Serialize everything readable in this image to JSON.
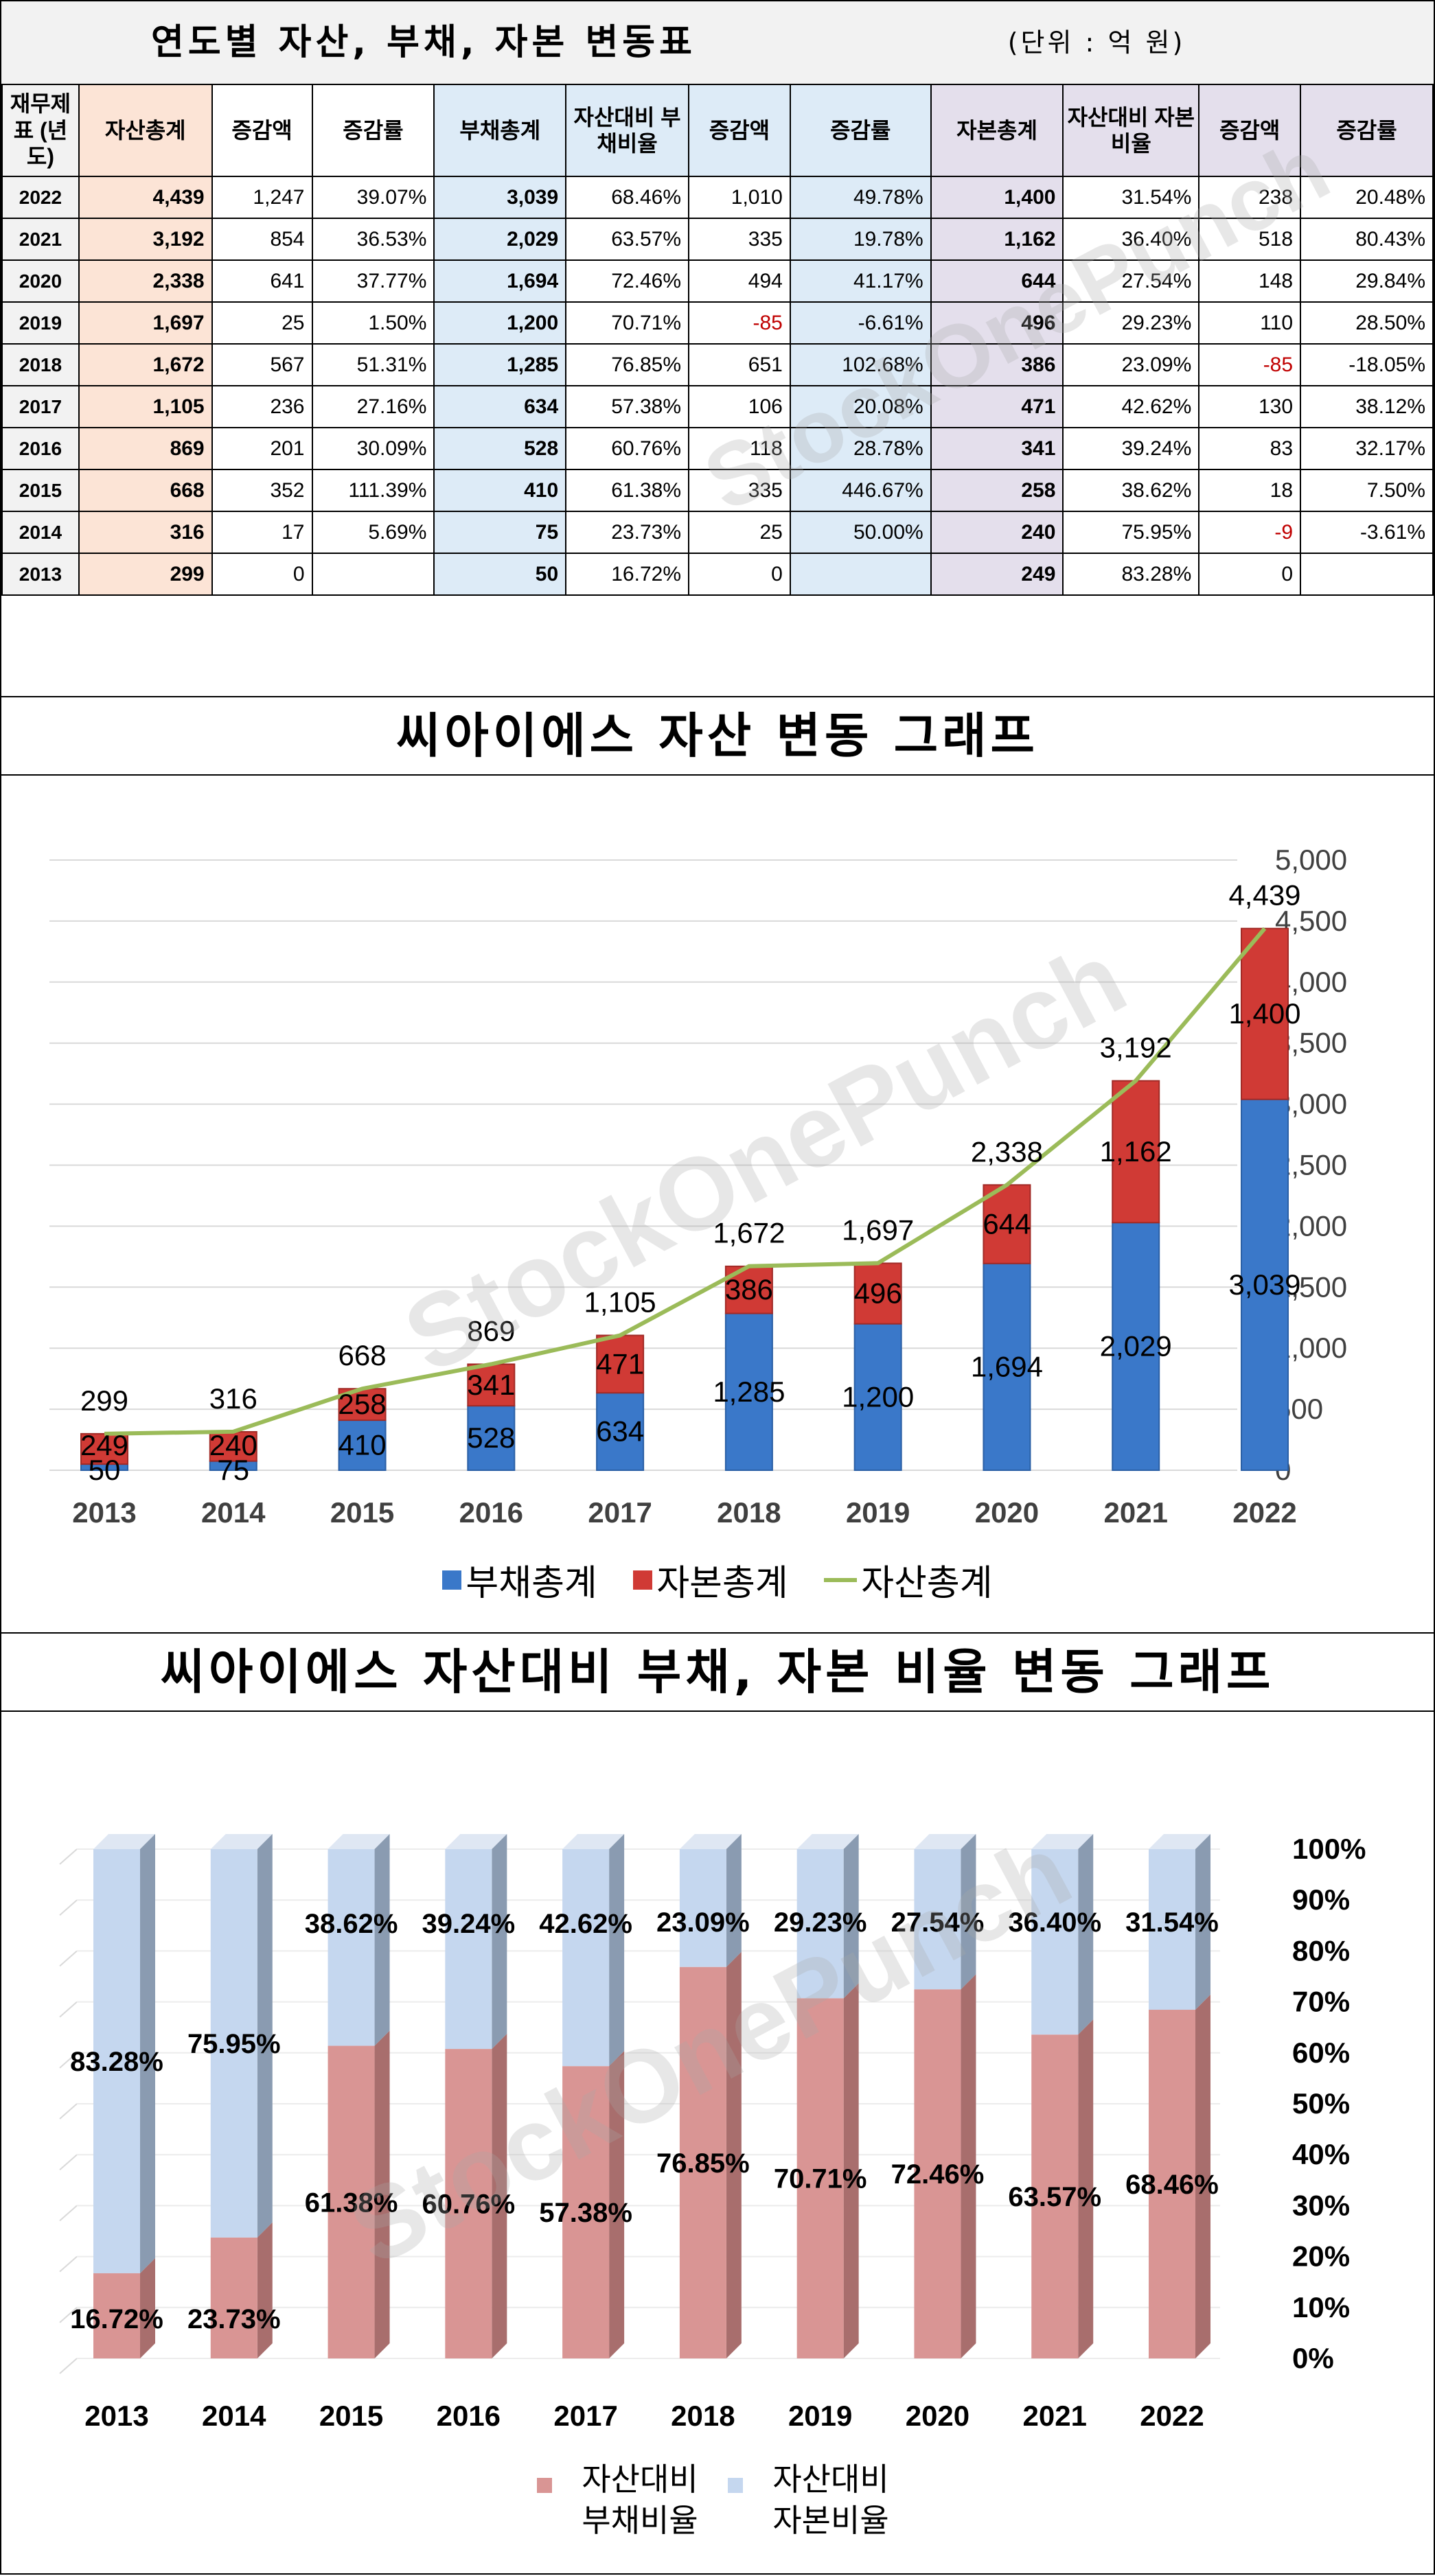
{
  "table": {
    "title": "연도별 자산, 부채, 자본 변동표",
    "unit": "(단위 : 억 원)",
    "headers": [
      "재무제표 (년도)",
      "자산총계",
      "증감액",
      "증감률",
      "부채총계",
      "자산대비 부채비율",
      "증감액",
      "증감률",
      "자본총계",
      "자산대비 자본비율",
      "증감액",
      "증감률"
    ],
    "rows": [
      [
        "2022",
        "4,439",
        "1,247",
        "39.07%",
        "3,039",
        "68.46%",
        "1,010",
        "49.78%",
        "1,400",
        "31.54%",
        "238",
        "20.48%"
      ],
      [
        "2021",
        "3,192",
        "854",
        "36.53%",
        "2,029",
        "63.57%",
        "335",
        "19.78%",
        "1,162",
        "36.40%",
        "518",
        "80.43%"
      ],
      [
        "2020",
        "2,338",
        "641",
        "37.77%",
        "1,694",
        "72.46%",
        "494",
        "41.17%",
        "644",
        "27.54%",
        "148",
        "29.84%"
      ],
      [
        "2019",
        "1,697",
        "25",
        "1.50%",
        "1,200",
        "70.71%",
        "-85",
        "-6.61%",
        "496",
        "29.23%",
        "110",
        "28.50%"
      ],
      [
        "2018",
        "1,672",
        "567",
        "51.31%",
        "1,285",
        "76.85%",
        "651",
        "102.68%",
        "386",
        "23.09%",
        "-85",
        "-18.05%"
      ],
      [
        "2017",
        "1,105",
        "236",
        "27.16%",
        "634",
        "57.38%",
        "106",
        "20.08%",
        "471",
        "42.62%",
        "130",
        "38.12%"
      ],
      [
        "2016",
        "869",
        "201",
        "30.09%",
        "528",
        "60.76%",
        "118",
        "28.78%",
        "341",
        "39.24%",
        "83",
        "32.17%"
      ],
      [
        "2015",
        "668",
        "352",
        "111.39%",
        "410",
        "61.38%",
        "335",
        "446.67%",
        "258",
        "38.62%",
        "18",
        "7.50%"
      ],
      [
        "2014",
        "316",
        "17",
        "5.69%",
        "75",
        "23.73%",
        "25",
        "50.00%",
        "240",
        "75.95%",
        "-9",
        "-3.61%"
      ],
      [
        "2013",
        "299",
        "0",
        "",
        "50",
        "16.72%",
        "0",
        "",
        "249",
        "83.28%",
        "0",
        ""
      ]
    ]
  },
  "watermark": "StockOnePunch",
  "colors": {
    "asset_bg": "#fce4d6",
    "liability_bg": "#ddebf7",
    "equity_bg": "#e4dfec",
    "liability_bar": "#3a78c9",
    "equity_bar": "#d03a35",
    "asset_line": "#9bbb59",
    "debt_ratio": "#d99594",
    "equity_ratio": "#c5d7ef",
    "negative": "#c00000"
  },
  "chart_data": [
    {
      "type": "bar",
      "title": "씨아이에스 자산 변동 그래프",
      "categories": [
        "2013",
        "2014",
        "2015",
        "2016",
        "2017",
        "2018",
        "2019",
        "2020",
        "2021",
        "2022"
      ],
      "series": [
        {
          "name": "부채총계",
          "kind": "stacked-bar",
          "values": [
            50,
            75,
            410,
            528,
            634,
            1285,
            1200,
            1694,
            2029,
            3039
          ]
        },
        {
          "name": "자본총계",
          "kind": "stacked-bar",
          "values": [
            249,
            240,
            258,
            341,
            471,
            386,
            496,
            644,
            1162,
            1400
          ]
        },
        {
          "name": "자산총계",
          "kind": "line",
          "values": [
            299,
            316,
            668,
            869,
            1105,
            1672,
            1697,
            2338,
            3192,
            4439
          ]
        }
      ],
      "ylim": [
        0,
        5000
      ],
      "yticks": [
        "0",
        "500",
        "1,000",
        "1,500",
        "2,000",
        "2,500",
        "3,000",
        "3,500",
        "4,000",
        "4,500",
        "5,000"
      ],
      "legend_position": "bottom",
      "grid": true
    },
    {
      "type": "bar",
      "title": "씨아이에스 자산대비 부채, 자본 비율 변동 그래프",
      "categories": [
        "2013",
        "2014",
        "2015",
        "2016",
        "2017",
        "2018",
        "2019",
        "2020",
        "2021",
        "2022"
      ],
      "series": [
        {
          "name": "자산대비 부채비율",
          "kind": "stacked-bar-100",
          "values": [
            16.72,
            23.73,
            61.38,
            60.76,
            57.38,
            76.85,
            70.71,
            72.46,
            63.57,
            68.46
          ]
        },
        {
          "name": "자산대비 자본비율",
          "kind": "stacked-bar-100",
          "values": [
            83.28,
            75.95,
            38.62,
            39.24,
            42.62,
            23.09,
            29.23,
            27.54,
            36.4,
            31.54
          ]
        }
      ],
      "ylim": [
        0,
        100
      ],
      "yticks": [
        "0%",
        "10%",
        "20%",
        "30%",
        "40%",
        "50%",
        "60%",
        "70%",
        "80%",
        "90%",
        "100%"
      ],
      "legend_position": "bottom",
      "grid": true
    }
  ]
}
